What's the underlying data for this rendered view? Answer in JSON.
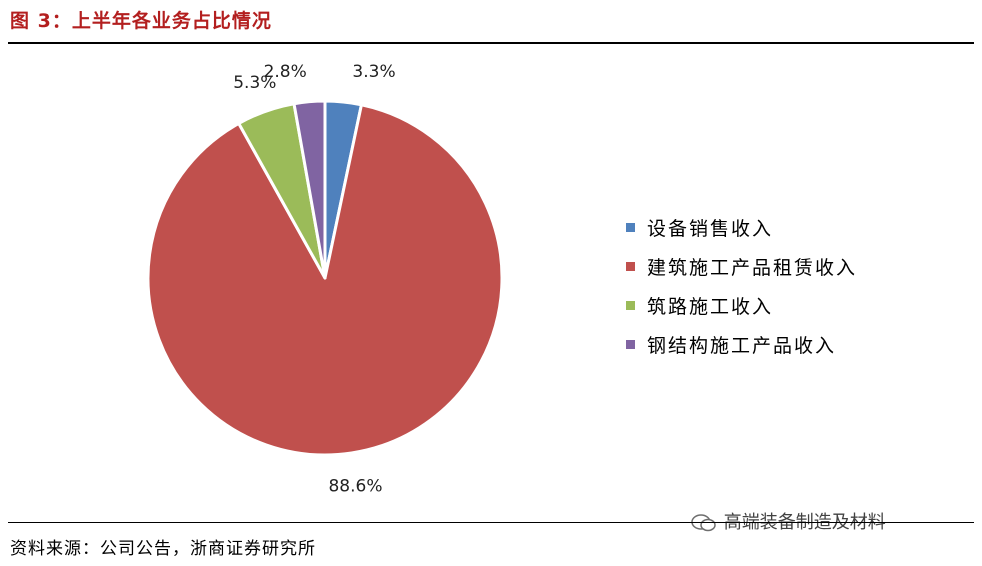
{
  "header": {
    "title": "图 3：上半年各业务占比情况"
  },
  "footer": {
    "source": "资料来源：公司公告，浙商证券研究所",
    "watermark": "高端装备制造及材料"
  },
  "chart_data": {
    "type": "pie",
    "title": "",
    "legend_position": "right",
    "series": [
      {
        "name": "设备销售收入",
        "value": 3.3,
        "label": "3.3%",
        "color": "#4f81bd"
      },
      {
        "name": "建筑施工产品租赁收入",
        "value": 88.6,
        "label": "88.6%",
        "color": "#c0504d"
      },
      {
        "name": "筑路施工收入",
        "value": 5.3,
        "label": "5.3%",
        "color": "#9bbb59"
      },
      {
        "name": "钢结构施工产品收入",
        "value": 2.8,
        "label": "2.8%",
        "color": "#8064a2"
      }
    ]
  }
}
